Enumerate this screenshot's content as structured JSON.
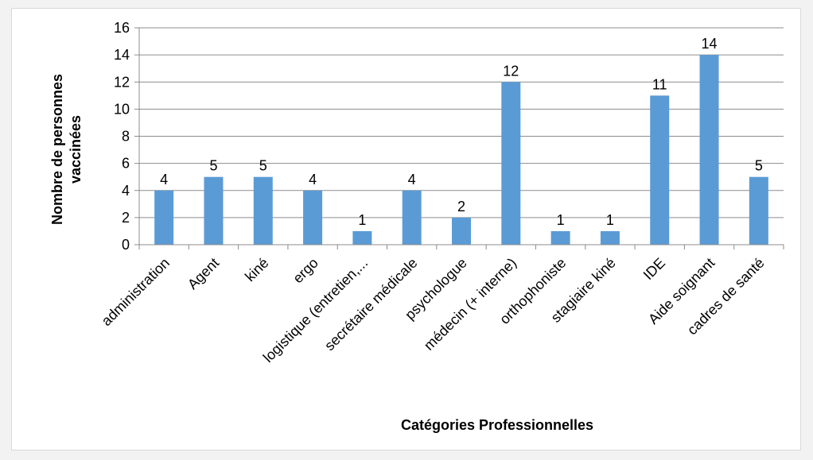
{
  "chart_data": {
    "type": "bar",
    "xlabel": "Catégories Professionnelles",
    "ylabel_lines": [
      "Nombre de personnes",
      "vaccinées"
    ],
    "categories": [
      "administration",
      "Agent",
      "kiné",
      "ergo",
      "logistique (entretien,...",
      "secrétaire médicale",
      "psychologue",
      "médecin (+ interne)",
      "orthophoniste",
      "stagiaire kiné",
      "IDE",
      "Aide soignant",
      "cadres de santé"
    ],
    "values": [
      4,
      5,
      5,
      4,
      1,
      4,
      2,
      12,
      1,
      1,
      11,
      14,
      5
    ],
    "ylim": [
      0,
      16
    ],
    "yticks": [
      0,
      2,
      4,
      6,
      8,
      10,
      12,
      14,
      16
    ],
    "grid": true,
    "data_labels": true,
    "bar_color": "#5b9bd5",
    "grid_color": "#8c8c8c"
  }
}
